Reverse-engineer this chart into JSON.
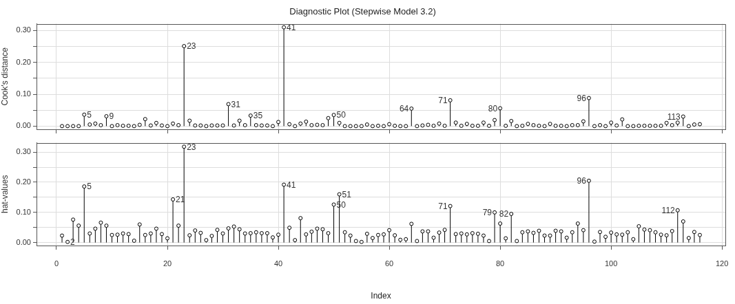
{
  "chart_data": [
    {
      "type": "lollipop",
      "title": "Diagnostic Plot (Stepwise Model 3.2)",
      "ylabel": "Cook's distance",
      "x": [
        1,
        2,
        3,
        4,
        5,
        6,
        7,
        8,
        9,
        10,
        11,
        12,
        13,
        14,
        15,
        16,
        17,
        18,
        19,
        20,
        21,
        22,
        23,
        24,
        25,
        26,
        27,
        28,
        29,
        30,
        31,
        32,
        33,
        34,
        35,
        36,
        37,
        38,
        39,
        40,
        41,
        42,
        43,
        44,
        45,
        46,
        47,
        48,
        49,
        50,
        51,
        52,
        53,
        54,
        55,
        56,
        57,
        58,
        59,
        60,
        61,
        62,
        63,
        64,
        65,
        66,
        67,
        68,
        69,
        70,
        71,
        72,
        73,
        74,
        75,
        76,
        77,
        78,
        79,
        80,
        81,
        82,
        83,
        84,
        85,
        86,
        87,
        88,
        89,
        90,
        91,
        92,
        93,
        94,
        95,
        96,
        97,
        98,
        99,
        100,
        101,
        102,
        103,
        104,
        105,
        106,
        107,
        108,
        109,
        110,
        111,
        112,
        113,
        114,
        115,
        116
      ],
      "series": [
        {
          "color": "#000000",
          "values": [
            0.0,
            0.0,
            0.0,
            0.0,
            0.036,
            0.005,
            0.008,
            0.003,
            0.031,
            0.0,
            0.003,
            0.001,
            0.001,
            0.0,
            0.004,
            0.022,
            0.002,
            0.01,
            0.002,
            0.0,
            0.008,
            0.003,
            0.251,
            0.017,
            0.002,
            0.002,
            0.0,
            0.002,
            0.002,
            0.002,
            0.069,
            0.002,
            0.017,
            0.003,
            0.033,
            0.003,
            0.002,
            0.002,
            0.0,
            0.013,
            0.31,
            0.006,
            0.0,
            0.008,
            0.014,
            0.003,
            0.004,
            0.003,
            0.025,
            0.035,
            0.01,
            0.0,
            0.0,
            0.0,
            0.0,
            0.005,
            0.0,
            0.001,
            0.0,
            0.006,
            0.001,
            0.0,
            0.0,
            0.055,
            0.0,
            0.002,
            0.004,
            0.001,
            0.008,
            0.001,
            0.081,
            0.011,
            0.001,
            0.007,
            0.001,
            0.001,
            0.011,
            0.001,
            0.019,
            0.056,
            0.001,
            0.016,
            0.0,
            0.001,
            0.007,
            0.003,
            0.001,
            0.0,
            0.007,
            0.001,
            0.001,
            0.0,
            0.003,
            0.003,
            0.015,
            0.088,
            0.0,
            0.003,
            0.0,
            0.011,
            0.002,
            0.021,
            0.0,
            0.0,
            0.001,
            0.001,
            0.001,
            0.001,
            0.001,
            0.01,
            0.003,
            0.011,
            0.03,
            0.0,
            0.005,
            0.006
          ]
        }
      ],
      "xlim": [
        -3.6,
        120.6
      ],
      "xticks": [
        0,
        20,
        40,
        60,
        80,
        100,
        120
      ],
      "ylim": [
        -0.01,
        0.321
      ],
      "yticks": [
        {
          "value": 0,
          "label": "0.00"
        },
        {
          "value": 0.05,
          "label": null
        },
        {
          "value": 0.1,
          "label": "0.10"
        },
        {
          "value": 0.15,
          "label": null
        },
        {
          "value": 0.2,
          "label": "0.20"
        },
        {
          "value": 0.25,
          "label": null
        },
        {
          "value": 0.3,
          "label": "0.30"
        }
      ],
      "tick_labels": "y",
      "grid": true,
      "legend": false,
      "marker": "circle",
      "annotations": [
        {
          "text": "5",
          "x": 5,
          "y": 0.036
        },
        {
          "text": "9",
          "x": 9,
          "y": 0.031
        },
        {
          "text": "23",
          "x": 23,
          "y": 0.251
        },
        {
          "text": "31",
          "x": 31,
          "y": 0.069
        },
        {
          "text": "35",
          "x": 35,
          "y": 0.033
        },
        {
          "text": "41",
          "x": 41,
          "y": 0.31
        },
        {
          "text": "50",
          "x": 50,
          "y": 0.035
        },
        {
          "text": "64",
          "x": 64,
          "y": 0.055
        },
        {
          "text": "71",
          "x": 71,
          "y": 0.081
        },
        {
          "text": "80",
          "x": 80,
          "y": 0.056
        },
        {
          "text": "96",
          "x": 96,
          "y": 0.088
        },
        {
          "text": "113",
          "x": 113,
          "y": 0.03
        }
      ]
    },
    {
      "type": "lollipop",
      "xlabel": "Index",
      "ylabel": "hat-values",
      "x": [
        1,
        2,
        3,
        4,
        5,
        6,
        7,
        8,
        9,
        10,
        11,
        12,
        13,
        14,
        15,
        16,
        17,
        18,
        19,
        20,
        21,
        22,
        23,
        24,
        25,
        26,
        27,
        28,
        29,
        30,
        31,
        32,
        33,
        34,
        35,
        36,
        37,
        38,
        39,
        40,
        41,
        42,
        43,
        44,
        45,
        46,
        47,
        48,
        49,
        50,
        51,
        52,
        53,
        54,
        55,
        56,
        57,
        58,
        59,
        60,
        61,
        62,
        63,
        64,
        65,
        66,
        67,
        68,
        69,
        70,
        71,
        72,
        73,
        74,
        75,
        76,
        77,
        78,
        79,
        80,
        81,
        82,
        83,
        84,
        85,
        86,
        87,
        88,
        89,
        90,
        91,
        92,
        93,
        94,
        95,
        96,
        97,
        98,
        99,
        100,
        101,
        102,
        103,
        104,
        105,
        106,
        107,
        108,
        109,
        110,
        111,
        112,
        113,
        114,
        115,
        116
      ],
      "series": [
        {
          "color": "#000000",
          "values": [
            0.023,
            0.002,
            0.076,
            0.056,
            0.186,
            0.03,
            0.046,
            0.066,
            0.056,
            0.025,
            0.026,
            0.03,
            0.028,
            0.006,
            0.06,
            0.025,
            0.03,
            0.046,
            0.028,
            0.014,
            0.143,
            0.056,
            0.318,
            0.024,
            0.04,
            0.032,
            0.008,
            0.022,
            0.042,
            0.03,
            0.047,
            0.053,
            0.044,
            0.03,
            0.031,
            0.034,
            0.031,
            0.031,
            0.017,
            0.026,
            0.192,
            0.049,
            0.008,
            0.081,
            0.027,
            0.036,
            0.046,
            0.044,
            0.031,
            0.126,
            0.16,
            0.034,
            0.023,
            0.005,
            0.002,
            0.029,
            0.015,
            0.025,
            0.027,
            0.041,
            0.024,
            0.009,
            0.011,
            0.062,
            0.005,
            0.037,
            0.037,
            0.016,
            0.033,
            0.042,
            0.121,
            0.028,
            0.03,
            0.027,
            0.031,
            0.029,
            0.023,
            0.005,
            0.1,
            0.063,
            0.014,
            0.095,
            0.005,
            0.034,
            0.037,
            0.032,
            0.039,
            0.023,
            0.023,
            0.039,
            0.037,
            0.016,
            0.034,
            0.063,
            0.041,
            0.205,
            0.003,
            0.035,
            0.019,
            0.033,
            0.027,
            0.026,
            0.034,
            0.011,
            0.054,
            0.043,
            0.041,
            0.034,
            0.026,
            0.024,
            0.038,
            0.107,
            0.07,
            0.015,
            0.035,
            0.025
          ]
        }
      ],
      "xlim": [
        -3.6,
        120.6
      ],
      "xticks": [
        0,
        20,
        40,
        60,
        80,
        100,
        120
      ],
      "ylim": [
        -0.01,
        0.331
      ],
      "yticks": [
        {
          "value": 0,
          "label": "0.00"
        },
        {
          "value": 0.05,
          "label": null
        },
        {
          "value": 0.1,
          "label": "0.10"
        },
        {
          "value": 0.15,
          "label": null
        },
        {
          "value": 0.2,
          "label": "0.20"
        },
        {
          "value": 0.25,
          "label": null
        },
        {
          "value": 0.3,
          "label": "0.30"
        }
      ],
      "grid": true,
      "legend": false,
      "marker": "circle",
      "annotations": [
        {
          "text": "2",
          "x": 2,
          "y": 0.002
        },
        {
          "text": "5",
          "x": 5,
          "y": 0.186
        },
        {
          "text": "21",
          "x": 21,
          "y": 0.143
        },
        {
          "text": "23",
          "x": 23,
          "y": 0.318
        },
        {
          "text": "41",
          "x": 41,
          "y": 0.192
        },
        {
          "text": "50",
          "x": 50,
          "y": 0.126
        },
        {
          "text": "51",
          "x": 51,
          "y": 0.16
        },
        {
          "text": "71",
          "x": 71,
          "y": 0.121
        },
        {
          "text": "79",
          "x": 79,
          "y": 0.1
        },
        {
          "text": "82",
          "x": 82,
          "y": 0.095
        },
        {
          "text": "96",
          "x": 96,
          "y": 0.205
        },
        {
          "text": "112",
          "x": 112,
          "y": 0.107
        }
      ]
    }
  ]
}
